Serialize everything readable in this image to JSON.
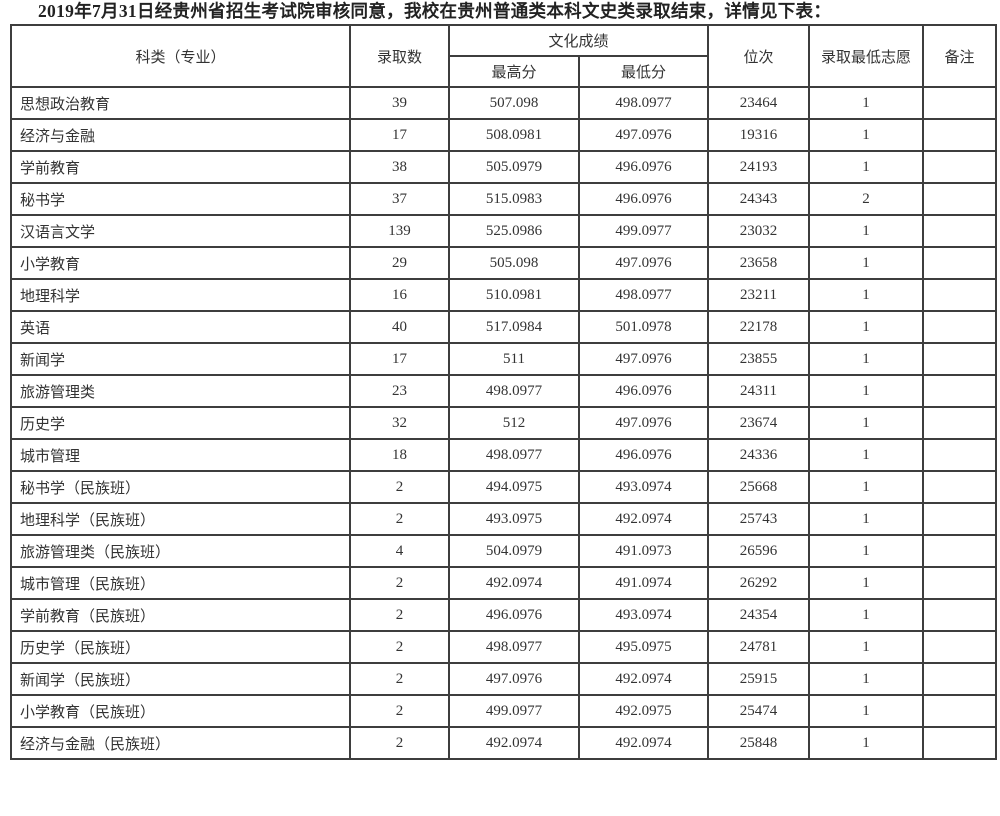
{
  "title": "2019年7月31日经贵州省招生考试院审核同意，我校在贵州普通类本科文史类录取结束，详情见下表：",
  "table": {
    "headers": {
      "category": "科类（专业）",
      "admit_count": "录取数",
      "culture_score_group": "文化成绩",
      "max_score": "最高分",
      "min_score": "最低分",
      "rank": "位次",
      "lowest_preference": "录取最低志愿",
      "remark": "备注"
    },
    "rows": [
      [
        "思想政治教育",
        "39",
        "507.098",
        "498.0977",
        "23464",
        "1",
        ""
      ],
      [
        "经济与金融",
        "17",
        "508.0981",
        "497.0976",
        "19316",
        "1",
        ""
      ],
      [
        "学前教育",
        "38",
        "505.0979",
        "496.0976",
        "24193",
        "1",
        ""
      ],
      [
        "秘书学",
        "37",
        "515.0983",
        "496.0976",
        "24343",
        "2",
        ""
      ],
      [
        "汉语言文学",
        "139",
        "525.0986",
        "499.0977",
        "23032",
        "1",
        ""
      ],
      [
        "小学教育",
        "29",
        "505.098",
        "497.0976",
        "23658",
        "1",
        ""
      ],
      [
        "地理科学",
        "16",
        "510.0981",
        "498.0977",
        "23211",
        "1",
        ""
      ],
      [
        "英语",
        "40",
        "517.0984",
        "501.0978",
        "22178",
        "1",
        ""
      ],
      [
        "新闻学",
        "17",
        "511",
        "497.0976",
        "23855",
        "1",
        ""
      ],
      [
        "旅游管理类",
        "23",
        "498.0977",
        "496.0976",
        "24311",
        "1",
        ""
      ],
      [
        "历史学",
        "32",
        "512",
        "497.0976",
        "23674",
        "1",
        ""
      ],
      [
        "城市管理",
        "18",
        "498.0977",
        "496.0976",
        "24336",
        "1",
        ""
      ],
      [
        "秘书学（民族班）",
        "2",
        "494.0975",
        "493.0974",
        "25668",
        "1",
        ""
      ],
      [
        "地理科学（民族班）",
        "2",
        "493.0975",
        "492.0974",
        "25743",
        "1",
        ""
      ],
      [
        "旅游管理类（民族班）",
        "4",
        "504.0979",
        "491.0973",
        "26596",
        "1",
        ""
      ],
      [
        "城市管理（民族班）",
        "2",
        "492.0974",
        "491.0974",
        "26292",
        "1",
        ""
      ],
      [
        "学前教育（民族班）",
        "2",
        "496.0976",
        "493.0974",
        "24354",
        "1",
        ""
      ],
      [
        "历史学（民族班）",
        "2",
        "498.0977",
        "495.0975",
        "24781",
        "1",
        ""
      ],
      [
        "新闻学（民族班）",
        "2",
        "497.0976",
        "492.0974",
        "25915",
        "1",
        ""
      ],
      [
        "小学教育（民族班）",
        "2",
        "499.0977",
        "492.0975",
        "25474",
        "1",
        ""
      ],
      [
        "经济与金融（民族班）",
        "2",
        "492.0974",
        "492.0974",
        "25848",
        "1",
        ""
      ]
    ],
    "cell_names": [
      "category-cell",
      "admit-count-cell",
      "max-score-cell",
      "min-score-cell",
      "rank-cell",
      "lowest-preference-cell",
      "remark-cell"
    ]
  }
}
